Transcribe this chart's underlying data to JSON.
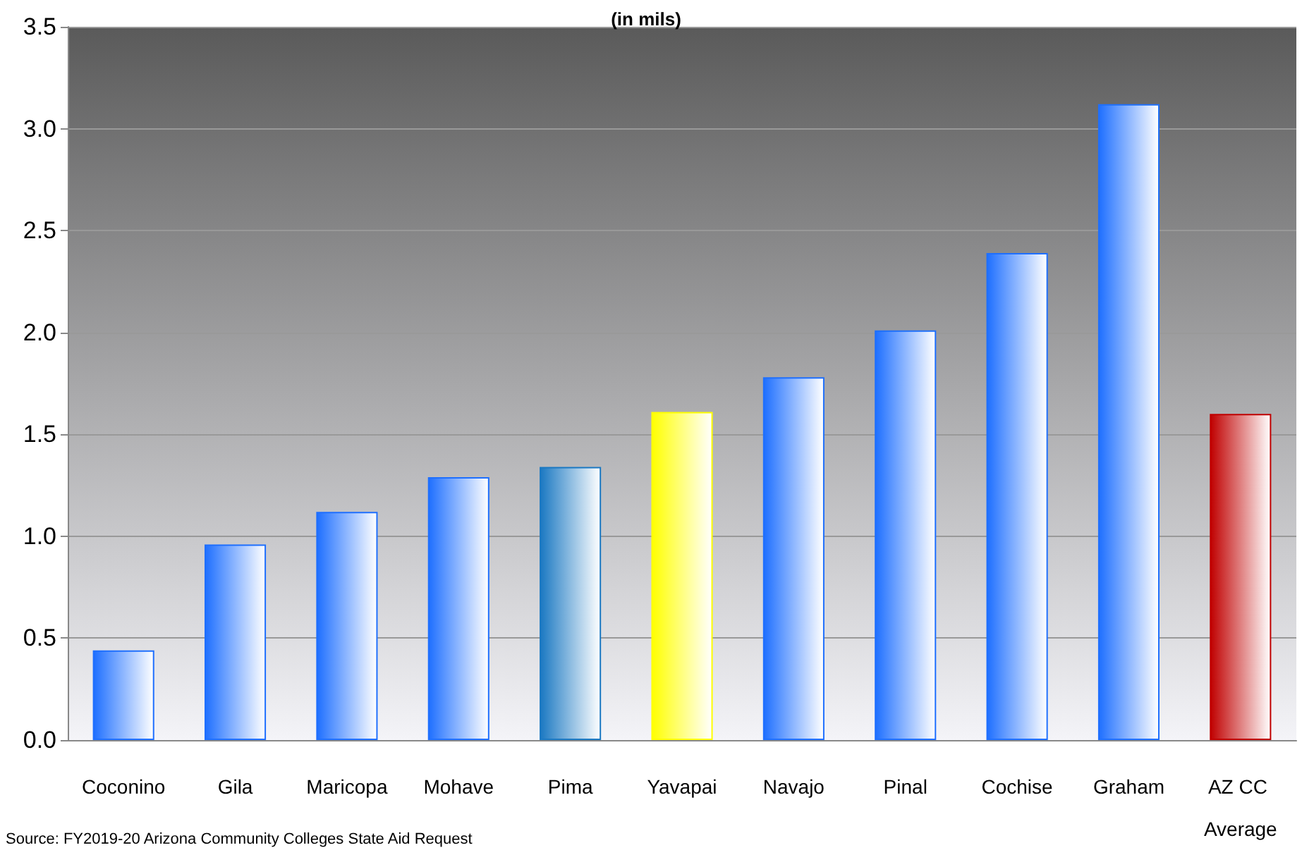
{
  "chart_data": {
    "type": "bar",
    "title": "(in mils)",
    "categories": [
      "Coconino",
      "Gila",
      "Maricopa",
      "Mohave",
      "Pima",
      "Yavapai",
      "Navajo",
      "Pinal",
      "Cochise",
      "Graham",
      "AZ CC Average"
    ],
    "values": [
      0.44,
      0.96,
      1.12,
      1.29,
      1.34,
      1.61,
      1.78,
      2.01,
      2.39,
      3.12,
      1.6
    ],
    "colors": [
      "#1e6fff",
      "#1e6fff",
      "#1e6fff",
      "#1e6fff",
      "#1a78c2",
      "#ffff00",
      "#1e6fff",
      "#1e6fff",
      "#1e6fff",
      "#1e6fff",
      "#c00000"
    ],
    "ylim": [
      0,
      3.5
    ],
    "yticks": [
      {
        "value": 0,
        "label": "0.0"
      },
      0.5,
      {
        "value": 1,
        "label": "1.0"
      },
      1.5,
      {
        "value": 2,
        "label": "2.0"
      },
      2.5,
      {
        "value": 3,
        "label": "3.0"
      },
      3.5
    ],
    "grid": "y",
    "annotations": [
      "Source: FY2019-20 Arizona Community Colleges State Aid Request"
    ]
  }
}
